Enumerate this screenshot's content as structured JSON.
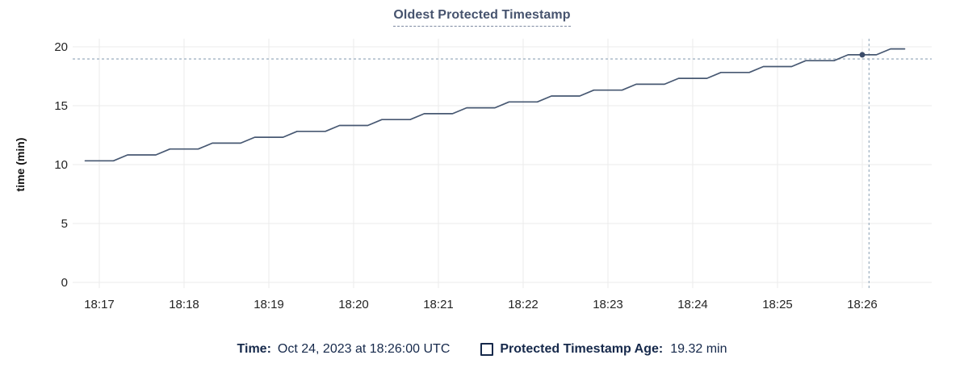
{
  "chart_data": {
    "type": "line",
    "title": "Oldest Protected Timestamp",
    "ylabel": "time (min)",
    "ylim": [
      0,
      20
    ],
    "yticks": [
      0,
      5,
      10,
      15,
      20
    ],
    "grid": true,
    "legend_position": "bottom",
    "xticks": [
      {
        "t": 0,
        "label": "18:17"
      },
      {
        "t": 1,
        "label": "18:18"
      },
      {
        "t": 2,
        "label": "18:19"
      },
      {
        "t": 3,
        "label": "18:20"
      },
      {
        "t": 4,
        "label": "18:21"
      },
      {
        "t": 5,
        "label": "18:22"
      },
      {
        "t": 6,
        "label": "18:23"
      },
      {
        "t": 7,
        "label": "18:24"
      },
      {
        "t": 8,
        "label": "18:25"
      },
      {
        "t": 9,
        "label": "18:26"
      }
    ],
    "series": [
      {
        "name": "Protected Timestamp Age",
        "color": "#475872",
        "points": [
          [
            -0.167,
            10.32
          ],
          [
            0,
            10.32
          ],
          [
            0.167,
            10.32
          ],
          [
            0.333,
            10.82
          ],
          [
            0.5,
            10.82
          ],
          [
            0.667,
            10.82
          ],
          [
            0.833,
            11.32
          ],
          [
            1,
            11.32
          ],
          [
            1.167,
            11.32
          ],
          [
            1.333,
            11.82
          ],
          [
            1.5,
            11.82
          ],
          [
            1.667,
            11.82
          ],
          [
            1.833,
            12.32
          ],
          [
            2,
            12.32
          ],
          [
            2.167,
            12.32
          ],
          [
            2.333,
            12.82
          ],
          [
            2.5,
            12.82
          ],
          [
            2.667,
            12.82
          ],
          [
            2.833,
            13.32
          ],
          [
            3,
            13.32
          ],
          [
            3.167,
            13.32
          ],
          [
            3.333,
            13.82
          ],
          [
            3.5,
            13.82
          ],
          [
            3.667,
            13.82
          ],
          [
            3.833,
            14.32
          ],
          [
            4,
            14.32
          ],
          [
            4.167,
            14.32
          ],
          [
            4.333,
            14.82
          ],
          [
            4.5,
            14.82
          ],
          [
            4.667,
            14.82
          ],
          [
            4.833,
            15.32
          ],
          [
            5,
            15.32
          ],
          [
            5.167,
            15.32
          ],
          [
            5.333,
            15.82
          ],
          [
            5.5,
            15.82
          ],
          [
            5.667,
            15.82
          ],
          [
            5.833,
            16.32
          ],
          [
            6,
            16.32
          ],
          [
            6.167,
            16.32
          ],
          [
            6.333,
            16.82
          ],
          [
            6.5,
            16.82
          ],
          [
            6.667,
            16.82
          ],
          [
            6.833,
            17.32
          ],
          [
            7,
            17.32
          ],
          [
            7.167,
            17.32
          ],
          [
            7.333,
            17.82
          ],
          [
            7.5,
            17.82
          ],
          [
            7.667,
            17.82
          ],
          [
            7.833,
            18.32
          ],
          [
            8,
            18.32
          ],
          [
            8.167,
            18.32
          ],
          [
            8.333,
            18.82
          ],
          [
            8.5,
            18.82
          ],
          [
            8.667,
            18.82
          ],
          [
            8.833,
            19.32
          ],
          [
            9,
            19.32
          ],
          [
            9.167,
            19.32
          ],
          [
            9.333,
            19.82
          ],
          [
            9.5,
            19.82
          ]
        ]
      }
    ],
    "hover": {
      "t": 9,
      "value": 19.32,
      "cursor_t": 9.08,
      "cursor_value": 18.97,
      "dot_color": "#3b4c6a",
      "crosshair_color": "#a2b3c3"
    }
  },
  "legend": {
    "time_label": "Time:",
    "time_value": "Oct 24, 2023 at 18:26:00 UTC",
    "series_label": "Protected Timestamp Age:",
    "series_value": "19.32 min"
  },
  "colors": {
    "gridline": "#ebebeb",
    "tick_text": "#242424",
    "title_text": "#46536e",
    "legend_text": "#16294b"
  }
}
